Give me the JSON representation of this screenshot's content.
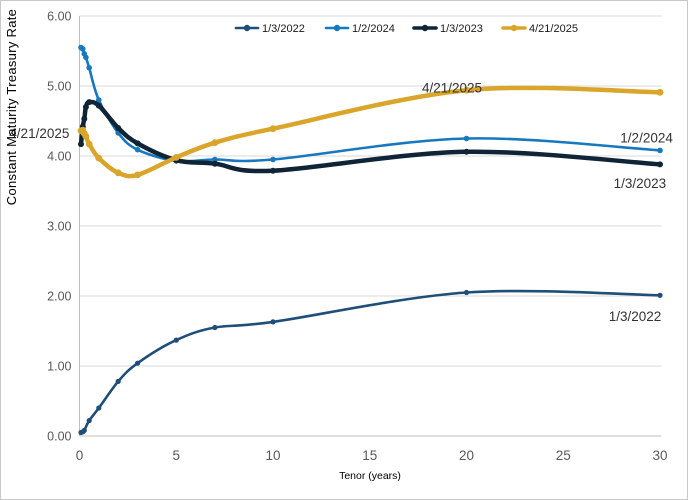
{
  "chart_data": {
    "type": "line",
    "title": "",
    "xlabel": "Tenor (years)",
    "ylabel": "Constant Maturity Treasury Rate",
    "xlim": [
      0,
      30
    ],
    "ylim": [
      0,
      6
    ],
    "x_ticks": [
      "0",
      "5",
      "10",
      "15",
      "20",
      "25",
      "30"
    ],
    "x_tick_values": [
      0,
      5,
      10,
      15,
      20,
      25,
      30
    ],
    "y_ticks": [
      "0.00",
      "1.00",
      "2.00",
      "3.00",
      "4.00",
      "5.00",
      "6.00"
    ],
    "y_tick_values": [
      0,
      1,
      2,
      3,
      4,
      5,
      6
    ],
    "grid": "horizontal",
    "legend_position": "top-center",
    "series": [
      {
        "name": "1/3/2022",
        "color": "#1f4e79",
        "width": 2.6,
        "marker_radius": 2.6,
        "points": [
          [
            0.08,
            0.05
          ],
          [
            0.17,
            0.06
          ],
          [
            0.25,
            0.08
          ],
          [
            0.5,
            0.22
          ],
          [
            1,
            0.4
          ],
          [
            2,
            0.78
          ],
          [
            3,
            1.04
          ],
          [
            5,
            1.37
          ],
          [
            7,
            1.55
          ],
          [
            10,
            1.63
          ],
          [
            20,
            2.05
          ],
          [
            30,
            2.01
          ]
        ]
      },
      {
        "name": "1/2/2024",
        "color": "#1878be",
        "width": 2.6,
        "marker_radius": 2.8,
        "points": [
          [
            0.08,
            5.55
          ],
          [
            0.17,
            5.53
          ],
          [
            0.25,
            5.46
          ],
          [
            0.33,
            5.41
          ],
          [
            0.5,
            5.26
          ],
          [
            1,
            4.8
          ],
          [
            2,
            4.33
          ],
          [
            3,
            4.09
          ],
          [
            5,
            3.93
          ],
          [
            7,
            3.95
          ],
          [
            10,
            3.95
          ],
          [
            20,
            4.25
          ],
          [
            30,
            4.08
          ]
        ]
      },
      {
        "name": "1/3/2023",
        "color": "#0f2436",
        "width": 4.5,
        "marker_radius": 3.0,
        "points": [
          [
            0.08,
            4.17
          ],
          [
            0.17,
            4.42
          ],
          [
            0.25,
            4.53
          ],
          [
            0.33,
            4.7
          ],
          [
            0.5,
            4.77
          ],
          [
            1,
            4.72
          ],
          [
            2,
            4.4
          ],
          [
            3,
            4.18
          ],
          [
            5,
            3.94
          ],
          [
            7,
            3.89
          ],
          [
            10,
            3.79
          ],
          [
            20,
            4.06
          ],
          [
            30,
            3.88
          ]
        ]
      },
      {
        "name": "4/21/2025",
        "color": "#d9a52b",
        "width": 4.5,
        "marker_radius": 3.4,
        "points": [
          [
            0.08,
            4.36
          ],
          [
            0.17,
            4.37
          ],
          [
            0.25,
            4.32
          ],
          [
            0.33,
            4.28
          ],
          [
            0.5,
            4.17
          ],
          [
            1,
            3.97
          ],
          [
            2,
            3.76
          ],
          [
            3,
            3.73
          ],
          [
            5,
            3.98
          ],
          [
            7,
            4.19
          ],
          [
            10,
            4.39
          ],
          [
            20,
            4.94
          ],
          [
            30,
            4.91
          ]
        ]
      }
    ],
    "annotations": [
      {
        "text": "4/21/2025",
        "x": 17.7,
        "y": 4.91
      },
      {
        "text": "1/2/2024",
        "x": 27.95,
        "y": 4.19
      },
      {
        "text": "1/3/2023",
        "x": 27.6,
        "y": 3.54
      },
      {
        "text": "1/3/2022",
        "x": 27.35,
        "y": 1.64
      },
      {
        "text": "4/21/2025",
        "x": -3.63,
        "y": 4.26
      }
    ],
    "colors": {
      "gridline": "#d9d9d9",
      "axis": "#bfbfbf",
      "tick_text": "#595959",
      "axis_title_text": "#404040",
      "annotation_text": "#333333",
      "legend_text": "#1a1a1a"
    }
  }
}
